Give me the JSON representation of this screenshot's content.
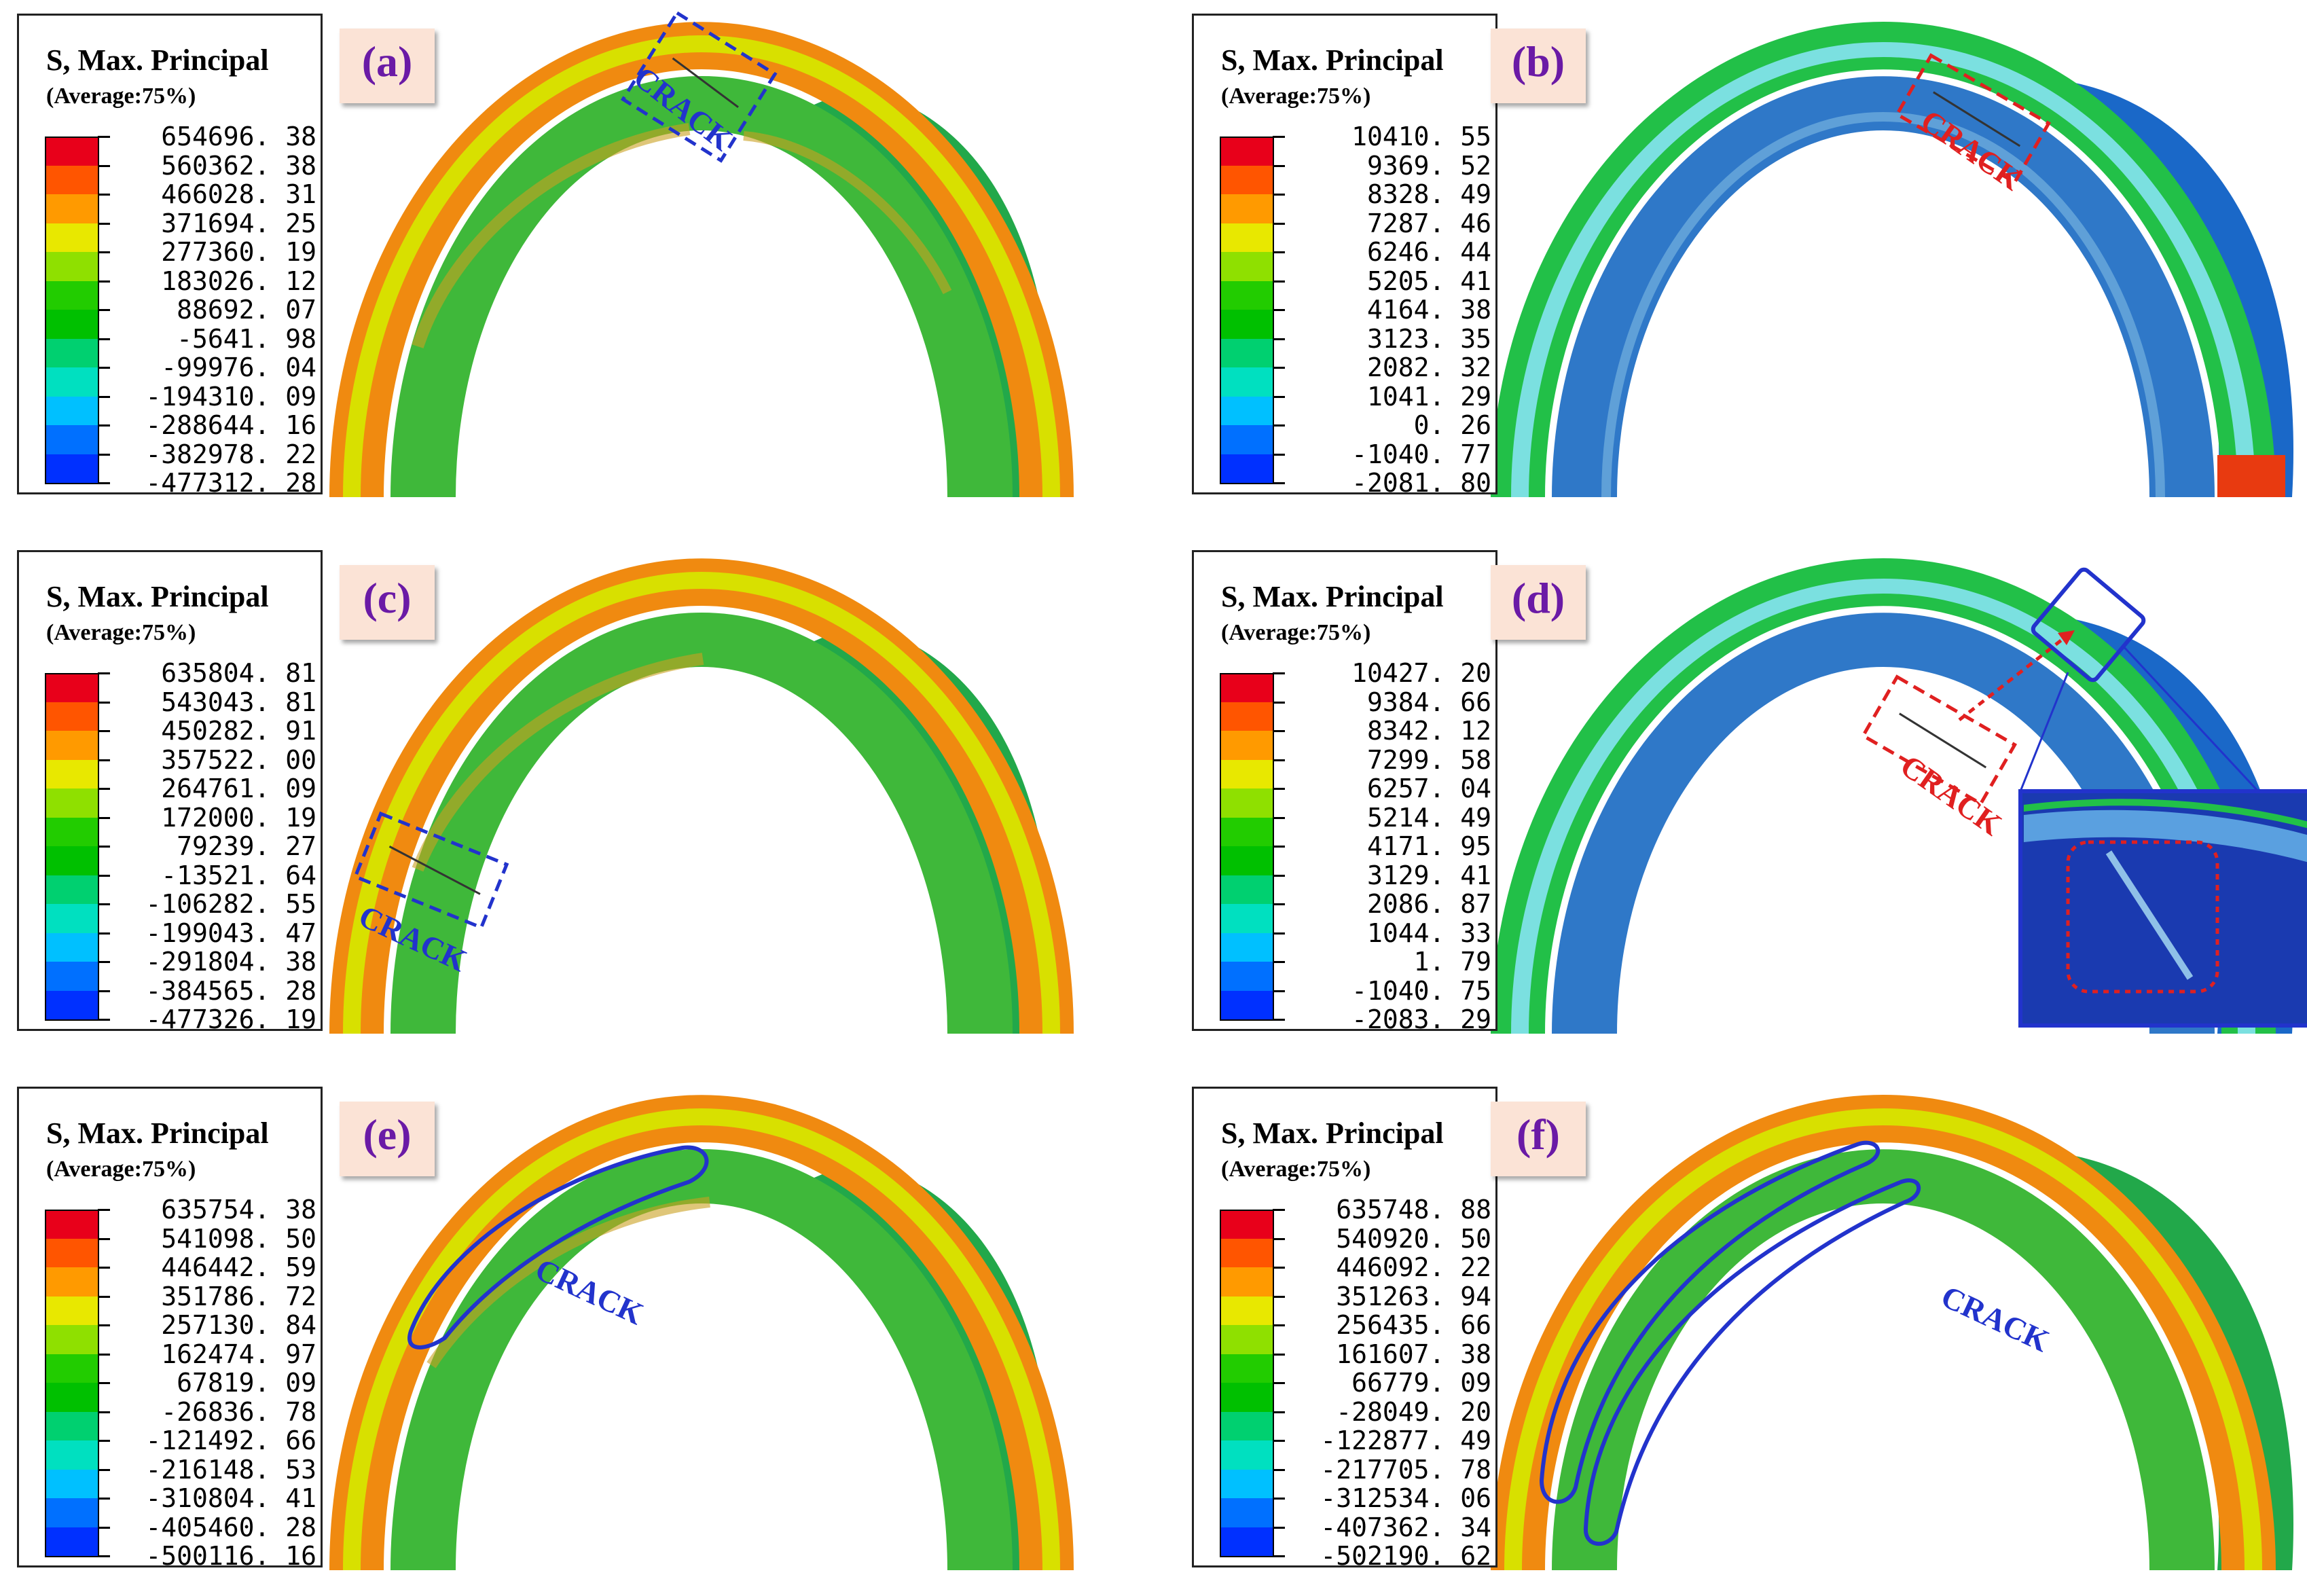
{
  "figure": {
    "legend_title": "S, Max. Principal",
    "legend_subtitle": "(Average:75%)",
    "crack_label": "CRACK",
    "colorbar_colors": [
      "#e8001a",
      "#ff5500",
      "#ff9a00",
      "#e8e800",
      "#8fe000",
      "#22cc00",
      "#00c000",
      "#00d070",
      "#00e0c0",
      "#00c0ff",
      "#0070ff",
      "#0030ff"
    ],
    "panels": [
      {
        "label": "(a)",
        "style": "ring",
        "crack": "rect-top",
        "crack_color": "#2233cc",
        "values": [
          "654696. 38",
          "560362. 38",
          "466028. 31",
          "371694. 25",
          "277360. 19",
          "183026. 12",
          "88692. 07",
          "-5641. 98",
          "-99976. 04",
          "-194310. 09",
          "-288644. 16",
          "-382978. 22",
          "-477312. 28"
        ]
      },
      {
        "label": "(b)",
        "style": "blue",
        "crack": "rect-left-top",
        "crack_color": "#e02020",
        "values": [
          "10410. 55",
          "9369. 52",
          "8328. 49",
          "7287. 46",
          "6246. 44",
          "5205. 41",
          "4164. 38",
          "3123. 35",
          "2082. 32",
          "1041. 29",
          "0. 26",
          "-1040. 77",
          "-2081. 80"
        ]
      },
      {
        "label": "(c)",
        "style": "ring",
        "crack": "rect-left",
        "crack_color": "#2233cc",
        "values": [
          "635804. 81",
          "543043. 81",
          "450282. 91",
          "357522. 00",
          "264761. 09",
          "172000. 19",
          "79239. 27",
          "-13521. 64",
          "-106282. 55",
          "-199043. 47",
          "-291804. 38",
          "-384565. 28",
          "-477326. 19"
        ]
      },
      {
        "label": "(d)",
        "style": "blue",
        "crack": "rect-left-top-inset",
        "crack_color": "#e02020",
        "values": [
          "10427. 20",
          "9384. 66",
          "8342. 12",
          "7299. 58",
          "6257. 04",
          "5214. 49",
          "4171. 95",
          "3129. 41",
          "2086. 87",
          "1044. 33",
          "1. 79",
          "-1040. 75",
          "-2083. 29"
        ]
      },
      {
        "label": "(e)",
        "style": "ring",
        "crack": "outline-one",
        "crack_color": "#2233cc",
        "values": [
          "635754. 38",
          "541098. 50",
          "446442. 59",
          "351786. 72",
          "257130. 84",
          "162474. 97",
          "67819. 09",
          "-26836. 78",
          "-121492. 66",
          "-216148. 53",
          "-310804. 41",
          "-405460. 28",
          "-500116. 16"
        ]
      },
      {
        "label": "(f)",
        "style": "ring",
        "crack": "outline-two",
        "crack_color": "#2233cc",
        "values": [
          "635748. 88",
          "540920. 50",
          "446092. 22",
          "351263. 94",
          "256435. 66",
          "161607. 38",
          "66779. 09",
          "-28049. 20",
          "-122877. 49",
          "-217705. 78",
          "-312534. 06",
          "-407362. 34",
          "-502190. 62"
        ]
      }
    ]
  }
}
